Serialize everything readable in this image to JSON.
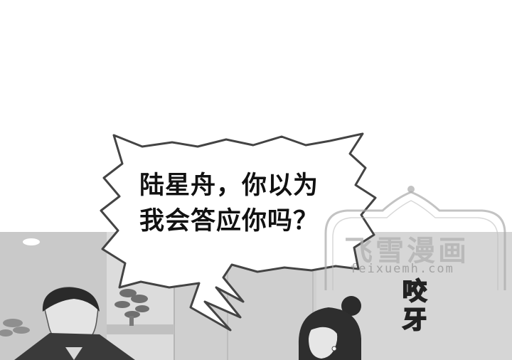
{
  "speech_bubble": {
    "line1": "陆星舟，你以为",
    "line2": "我会答应你吗？"
  },
  "watermark": {
    "logo": "飞雪漫画",
    "url": "feixuemh.com"
  },
  "side_title": {
    "char1": "咬",
    "char2": "牙"
  },
  "colors": {
    "bubble_fill": "#ffffff",
    "bubble_stroke": "#444444",
    "panel_bg": "#d9d9d9"
  }
}
